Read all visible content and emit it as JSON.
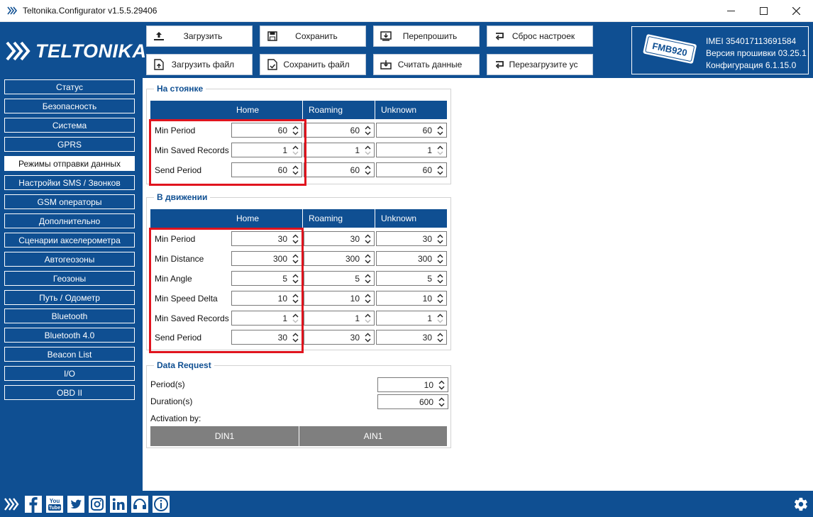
{
  "window": {
    "title": "Teltonika.Configurator v1.5.5.29406",
    "minimize": "—",
    "maximize": "☐",
    "close": "✕"
  },
  "logo": {
    "text": "TELTONIKA"
  },
  "toolbar": {
    "load": "Загрузить",
    "save": "Сохранить",
    "reflash": "Перепрошить",
    "reset": "Сброс настроек",
    "load_file": "Загрузить файл",
    "save_file": "Сохранить файл",
    "read": "Считать данные",
    "reboot": "Перезагрузите ус"
  },
  "device": {
    "model": "FMB920",
    "imei": "IMEI  354017113691584",
    "firmware": "Версия прошивки  03.25.1",
    "config": "Конфигурация  6.1.15.0"
  },
  "sidebar": {
    "items": [
      "Статус",
      "Безопасность",
      "Система",
      "GPRS",
      "Режимы отправки данных",
      "Настройки SMS / Звонков",
      "GSM операторы",
      "Дополнительно",
      "Сценарии акселерометра",
      "Автогеозоны",
      "Геозоны",
      "Путь / Одометр",
      "Bluetooth",
      "Bluetooth 4.0",
      "Beacon List",
      "I/O",
      "OBD II"
    ],
    "active_index": 4
  },
  "columns": {
    "home": "Home",
    "roaming": "Roaming",
    "unknown": "Unknown"
  },
  "stationary": {
    "title": "На стоянке",
    "rows": [
      {
        "label": "Min Period",
        "home": "60",
        "roaming": "60",
        "unknown": "60"
      },
      {
        "label": "Min Saved Records",
        "home": "1",
        "roaming": "1",
        "unknown": "1"
      },
      {
        "label": "Send Period",
        "home": "60",
        "roaming": "60",
        "unknown": "60"
      }
    ]
  },
  "moving": {
    "title": "В движении",
    "rows": [
      {
        "label": "Min Period",
        "home": "30",
        "roaming": "30",
        "unknown": "30"
      },
      {
        "label": "Min Distance",
        "home": "300",
        "roaming": "300",
        "unknown": "300"
      },
      {
        "label": "Min Angle",
        "home": "5",
        "roaming": "5",
        "unknown": "5"
      },
      {
        "label": "Min Speed Delta",
        "home": "10",
        "roaming": "10",
        "unknown": "10"
      },
      {
        "label": "Min Saved Records",
        "home": "1",
        "roaming": "1",
        "unknown": "1"
      },
      {
        "label": "Send Period",
        "home": "30",
        "roaming": "30",
        "unknown": "30"
      }
    ]
  },
  "data_request": {
    "title": "Data Request",
    "period_label": "Period(s)",
    "period_value": "10",
    "duration_label": "Duration(s)",
    "duration_value": "600",
    "activation_label": "Activation by:",
    "din1": "DIN1",
    "ain1": "AIN1"
  },
  "colors": {
    "brand": "#0f4f92",
    "highlight": "#e0141e",
    "button_gray": "#7f7f7f"
  }
}
